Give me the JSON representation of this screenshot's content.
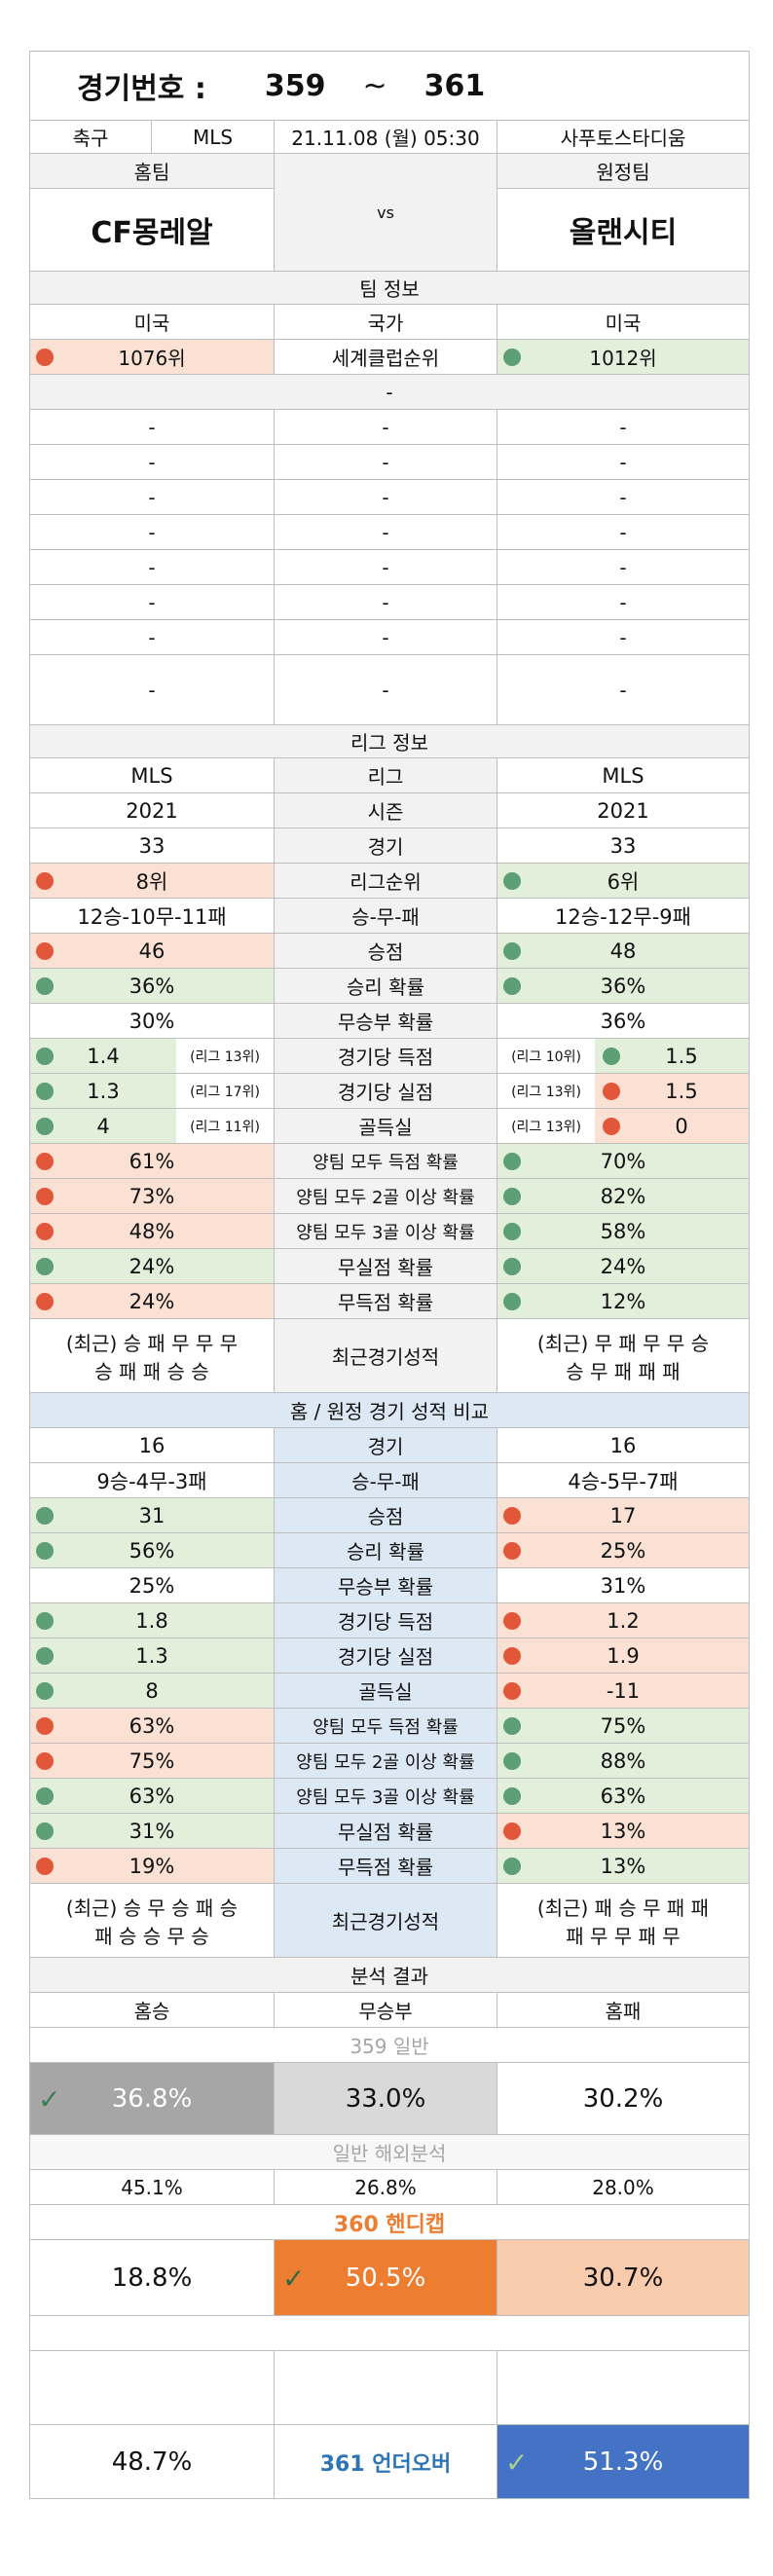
{
  "header": {
    "label": "경기번호 :",
    "from": "359",
    "sep": "~",
    "to": "361"
  },
  "match": {
    "sport": "축구",
    "league": "MLS",
    "datetime": "21.11.08 (월) 05:30",
    "venue": "사푸토스타디움",
    "home_label": "홈팀",
    "away_label": "원정팀",
    "home_team": "CF몽레알",
    "vs": "vs",
    "away_team": "올랜시티"
  },
  "team_info": {
    "title": "팀 정보",
    "home_country": "미국",
    "country_label": "국가",
    "away_country": "미국",
    "home_rank": "1076위",
    "rank_label": "세계클럽순위",
    "away_rank": "1012위",
    "sub_title": "-",
    "dash": "-"
  },
  "league_info": {
    "title": "리그 정보",
    "rows": [
      {
        "home": "MLS",
        "label": "리그",
        "away": "MLS"
      },
      {
        "home": "2021",
        "label": "시즌",
        "away": "2021"
      },
      {
        "home": "33",
        "label": "경기",
        "away": "33"
      },
      {
        "home": "8위",
        "label": "리그순위",
        "away": "6위"
      },
      {
        "home": "12승-10무-11패",
        "label": "승-무-패",
        "away": "12승-12무-9패"
      },
      {
        "home": "46",
        "label": "승점",
        "away": "48"
      },
      {
        "home": "36%",
        "label": "승리 확률",
        "away": "36%"
      },
      {
        "home": "30%",
        "label": "무승부 확률",
        "away": "36%"
      },
      {
        "home": "1.4",
        "home_sub": "(리그 13위)",
        "label": "경기당 득점",
        "away_sub": "(리그 10위)",
        "away": "1.5"
      },
      {
        "home": "1.3",
        "home_sub": "(리그 17위)",
        "label": "경기당 실점",
        "away_sub": "(리그 13위)",
        "away": "1.5"
      },
      {
        "home": "4",
        "home_sub": "(리그 11위)",
        "label": "골득실",
        "away_sub": "(리그 13위)",
        "away": "0"
      },
      {
        "home": "61%",
        "label": "양팀 모두 득점 확률",
        "away": "70%"
      },
      {
        "home": "73%",
        "label": "양팀 모두 2골 이상 확률",
        "away": "82%"
      },
      {
        "home": "48%",
        "label": "양팀 모두 3골 이상 확률",
        "away": "58%"
      },
      {
        "home": "24%",
        "label": "무실점 확률",
        "away": "24%"
      },
      {
        "home": "24%",
        "label": "무득점 확률",
        "away": "12%"
      }
    ],
    "recent": {
      "home_l1": "(최근) 승 패 무 무 무",
      "home_l2": "승 패 패 승 승",
      "label": "최근경기성적",
      "away_l1": "(최근) 무 패 무 무 승",
      "away_l2": "승 무 패 패 패"
    }
  },
  "home_away": {
    "title": "홈 / 원정 경기 성적 비교",
    "rows": [
      {
        "home": "16",
        "label": "경기",
        "away": "16"
      },
      {
        "home": "9승-4무-3패",
        "label": "승-무-패",
        "away": "4승-5무-7패"
      },
      {
        "home": "31",
        "label": "승점",
        "away": "17"
      },
      {
        "home": "56%",
        "label": "승리 확률",
        "away": "25%"
      },
      {
        "home": "25%",
        "label": "무승부 확률",
        "away": "31%"
      },
      {
        "home": "1.8",
        "label": "경기당 득점",
        "away": "1.2"
      },
      {
        "home": "1.3",
        "label": "경기당 실점",
        "away": "1.9"
      },
      {
        "home": "8",
        "label": "골득실",
        "away": "-11"
      },
      {
        "home": "63%",
        "label": "양팀 모두 득점 확률",
        "away": "75%"
      },
      {
        "home": "75%",
        "label": "양팀 모두 2골 이상 확률",
        "away": "88%"
      },
      {
        "home": "63%",
        "label": "양팀 모두 3골 이상 확률",
        "away": "63%"
      },
      {
        "home": "31%",
        "label": "무실점 확률",
        "away": "13%"
      },
      {
        "home": "19%",
        "label": "무득점 확률",
        "away": "13%"
      }
    ],
    "recent": {
      "home_l1": "(최근) 승 무 승 패 승",
      "home_l2": "패 승 승 무 승",
      "label": "최근경기성적",
      "away_l1": "(최근) 패 승 무 패 패",
      "away_l2": "패 무 무 패 무"
    }
  },
  "analysis": {
    "title": "분석 결과",
    "home_win": "홈승",
    "draw": "무승부",
    "home_loss": "홈패",
    "general_label": "359 일반",
    "general": [
      "36.8%",
      "33.0%",
      "30.2%"
    ],
    "overseas_label": "일반 해외분석",
    "overseas": [
      "45.1%",
      "26.8%",
      "28.0%"
    ],
    "handicap_label": "360 핸디캡",
    "handicap": [
      "18.8%",
      "50.5%",
      "30.7%"
    ],
    "ou_label": "361 언더오버",
    "ou": [
      "48.7%",
      "51.3%"
    ]
  },
  "colors": {
    "red_dot": "#e2573a",
    "green_dot": "#5e9e74",
    "orange": "#ed7d31",
    "blue": "#4472c4",
    "gray_dark": "#a6a6a6"
  }
}
